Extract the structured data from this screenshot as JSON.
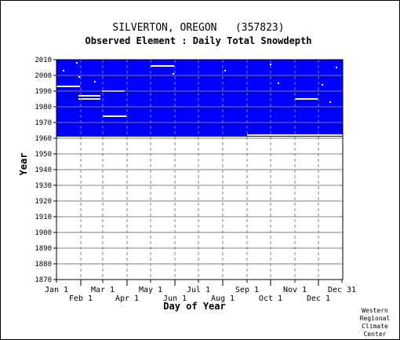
{
  "chart_data": {
    "type": "heatmap",
    "title": "SILVERTON, OREGON   (357823)",
    "subtitle": "Observed Element : Daily Total Snowdepth",
    "xlabel": "Day of Year",
    "ylabel": "Year",
    "xlim": [
      1,
      366
    ],
    "ylim": [
      1870,
      2010
    ],
    "y_ticks": [
      1870,
      1880,
      1890,
      1900,
      1910,
      1920,
      1930,
      1940,
      1950,
      1960,
      1970,
      1980,
      1990,
      2000,
      2010
    ],
    "x_ticks_upper": [
      {
        "label": "Jan 1",
        "day": 1
      },
      {
        "label": "Mar 1",
        "day": 60
      },
      {
        "label": "May 1",
        "day": 121
      },
      {
        "label": "Jul 1",
        "day": 182
      },
      {
        "label": "Sep 1",
        "day": 244
      },
      {
        "label": "Nov 1",
        "day": 305
      },
      {
        "label": "Dec 31",
        "day": 365
      }
    ],
    "x_ticks_lower": [
      {
        "label": "Feb 1",
        "day": 32
      },
      {
        "label": "Apr 1",
        "day": 91
      },
      {
        "label": "Jun 1",
        "day": 152
      },
      {
        "label": "Aug 1",
        "day": 213
      },
      {
        "label": "Oct 1",
        "day": 274
      },
      {
        "label": "Dec 1",
        "day": 335
      }
    ],
    "grid": true,
    "data_color": "#0000ff",
    "missing_color": "#ffffff",
    "observed_block": {
      "day_start": 1,
      "day_end": 366,
      "year_start": 1961,
      "year_end": 2010
    },
    "missing_segments": [
      {
        "year": 2006,
        "day_start": 121,
        "day_end": 151
      },
      {
        "year": 1999,
        "day_start": 29,
        "day_end": 31
      },
      {
        "year": 1996,
        "day_start": 49,
        "day_end": 50
      },
      {
        "year": 1993,
        "day_start": 1,
        "day_end": 31
      },
      {
        "year": 1990,
        "day_start": 59,
        "day_end": 88
      },
      {
        "year": 1987,
        "day_start": 29,
        "day_end": 57
      },
      {
        "year": 1985,
        "day_start": 29,
        "day_end": 57
      },
      {
        "year": 1985,
        "day_start": 305,
        "day_end": 334
      },
      {
        "year": 1974,
        "day_start": 60,
        "day_end": 90
      },
      {
        "year": 1962,
        "day_start": 244,
        "day_end": 366
      }
    ],
    "missing_specks": [
      {
        "year": 2008,
        "day": 27
      },
      {
        "year": 2007,
        "day": 274
      },
      {
        "year": 2003,
        "day": 10
      },
      {
        "year": 2003,
        "day": 216
      },
      {
        "year": 2001,
        "day": 150
      },
      {
        "year": 2005,
        "day": 358
      },
      {
        "year": 1995,
        "day": 284
      },
      {
        "year": 1994,
        "day": 340
      },
      {
        "year": 1983,
        "day": 350
      }
    ]
  },
  "footer": {
    "line1": "Western",
    "line2": "Regional",
    "line3": "Climate",
    "line4": "Center"
  },
  "colors": {
    "background": "#ffffff",
    "grid": "#808080",
    "text": "#000000"
  }
}
